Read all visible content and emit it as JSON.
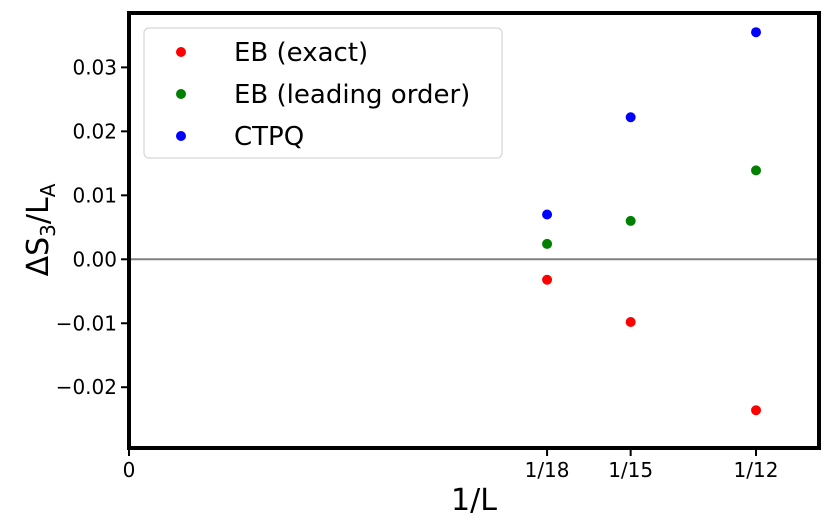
{
  "chart_data": {
    "type": "scatter",
    "xlabel": "1/L",
    "ylabel_parts": {
      "base": "ΔS",
      "sub1": "3",
      "slash": "/L",
      "sub2": "A"
    },
    "xlim": [
      0,
      0.0917
    ],
    "ylim": [
      -0.0295,
      0.0385
    ],
    "x_ticks": [
      {
        "value": 0,
        "label": "0"
      },
      {
        "value": 0.05556,
        "label": "1/18"
      },
      {
        "value": 0.06667,
        "label": "1/15"
      },
      {
        "value": 0.08333,
        "label": "1/12"
      }
    ],
    "y_ticks": [
      {
        "value": 0.03,
        "label": "0.03"
      },
      {
        "value": 0.02,
        "label": "0.02"
      },
      {
        "value": 0.01,
        "label": "0.01"
      },
      {
        "value": 0.0,
        "label": "0.00"
      },
      {
        "value": -0.01,
        "label": "−0.01"
      },
      {
        "value": -0.02,
        "label": "−0.02"
      }
    ],
    "hline": {
      "y": 0,
      "color": "#808080"
    },
    "grid": false,
    "legend_position": "top-left",
    "series": [
      {
        "name": "EB (exact)",
        "color": "#ff0000",
        "points": [
          [
            0.05556,
            -0.0032
          ],
          [
            0.06667,
            -0.0098
          ],
          [
            0.08333,
            -0.0236
          ]
        ]
      },
      {
        "name": "EB (leading order)",
        "color": "#008000",
        "points": [
          [
            0.05556,
            0.0024
          ],
          [
            0.06667,
            0.006
          ],
          [
            0.08333,
            0.0139
          ]
        ]
      },
      {
        "name": "CTPQ",
        "color": "#0000ff",
        "points": [
          [
            0.05556,
            0.007
          ],
          [
            0.06667,
            0.0222
          ],
          [
            0.08333,
            0.0355
          ]
        ]
      }
    ]
  }
}
